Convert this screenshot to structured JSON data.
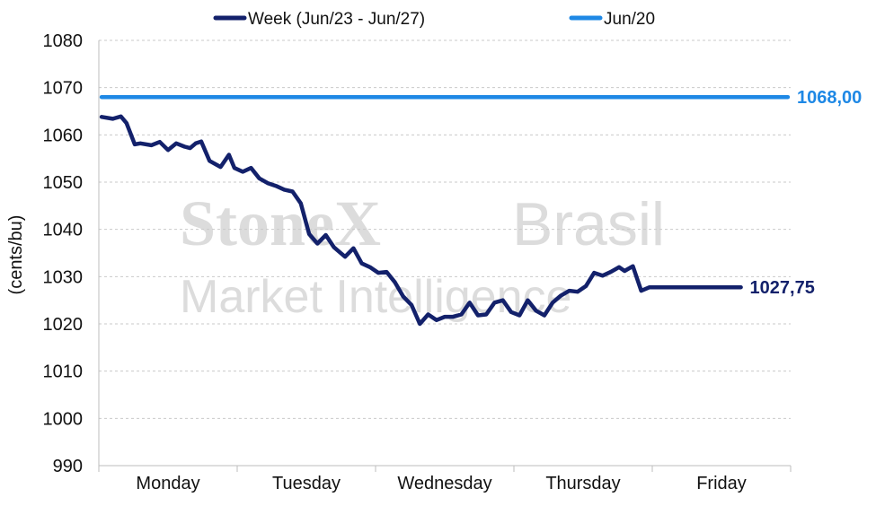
{
  "chart_data": {
    "type": "line",
    "ylabel": "(cents/bu)",
    "ylim": [
      990,
      1080
    ],
    "yticks": [
      990,
      1000,
      1010,
      1020,
      1030,
      1040,
      1050,
      1060,
      1070,
      1080
    ],
    "categories": [
      "Monday",
      "Tuesday",
      "Wednesday",
      "Thursday",
      "Friday"
    ],
    "grid": true,
    "legend_position": "top",
    "watermark": {
      "brand": "StoneX",
      "region": "Brasil",
      "tagline": "Market Intelligence"
    },
    "series": [
      {
        "name": "Week (Jun/23 - Jun/27)",
        "color": "#13216b",
        "end_label": "1027,75",
        "x": [
          0.02,
          0.1,
          0.16,
          0.2,
          0.26,
          0.3,
          0.38,
          0.44,
          0.5,
          0.56,
          0.62,
          0.66,
          0.7,
          0.74,
          0.8,
          0.88,
          0.94,
          0.98,
          1.04,
          1.1,
          1.16,
          1.22,
          1.28,
          1.34,
          1.4,
          1.46,
          1.52,
          1.58,
          1.64,
          1.7,
          1.78,
          1.84,
          1.9,
          1.96,
          2.02,
          2.08,
          2.14,
          2.2,
          2.26,
          2.32,
          2.38,
          2.44,
          2.5,
          2.56,
          2.62,
          2.68,
          2.74,
          2.8,
          2.86,
          2.92,
          2.98,
          3.04,
          3.1,
          3.16,
          3.22,
          3.28,
          3.34,
          3.4,
          3.46,
          3.52,
          3.58,
          3.64,
          3.7,
          3.76,
          3.8,
          3.86,
          3.92,
          3.98,
          4.04,
          4.1,
          4.16,
          4.22,
          4.28,
          4.34,
          4.4,
          4.46,
          4.5,
          4.54,
          4.58,
          4.62,
          4.64
        ],
        "values": [
          1063.8,
          1063.4,
          1063.9,
          1062.5,
          1058.0,
          1058.2,
          1057.8,
          1058.5,
          1056.8,
          1058.2,
          1057.5,
          1057.2,
          1058.2,
          1058.6,
          1054.5,
          1053.2,
          1055.8,
          1053.0,
          1052.2,
          1053.0,
          1050.8,
          1049.8,
          1049.2,
          1048.4,
          1048.0,
          1045.5,
          1039.0,
          1037.0,
          1038.8,
          1036.2,
          1034.2,
          1036.0,
          1032.8,
          1032.0,
          1030.8,
          1031.0,
          1028.8,
          1025.8,
          1024.0,
          1020.0,
          1022.0,
          1020.8,
          1021.5,
          1021.5,
          1022.0,
          1024.5,
          1021.8,
          1022.0,
          1024.5,
          1025.0,
          1022.5,
          1021.8,
          1025.0,
          1022.8,
          1021.8,
          1024.5,
          1026.0,
          1027.0,
          1026.8,
          1028.0,
          1030.8,
          1030.2,
          1031.0,
          1032.0,
          1031.2,
          1032.2,
          1027.0,
          1027.75,
          1027.75,
          1027.75,
          1027.75,
          1027.75,
          1027.75,
          1027.75,
          1027.75,
          1027.75,
          1027.75,
          1027.75,
          1027.75,
          1027.75,
          1027.75
        ]
      },
      {
        "name": "Jun/20",
        "color": "#1e88e5",
        "end_label": "1068,00",
        "x": [
          0.02,
          4.98
        ],
        "values": [
          1068.0,
          1068.0
        ]
      }
    ]
  }
}
